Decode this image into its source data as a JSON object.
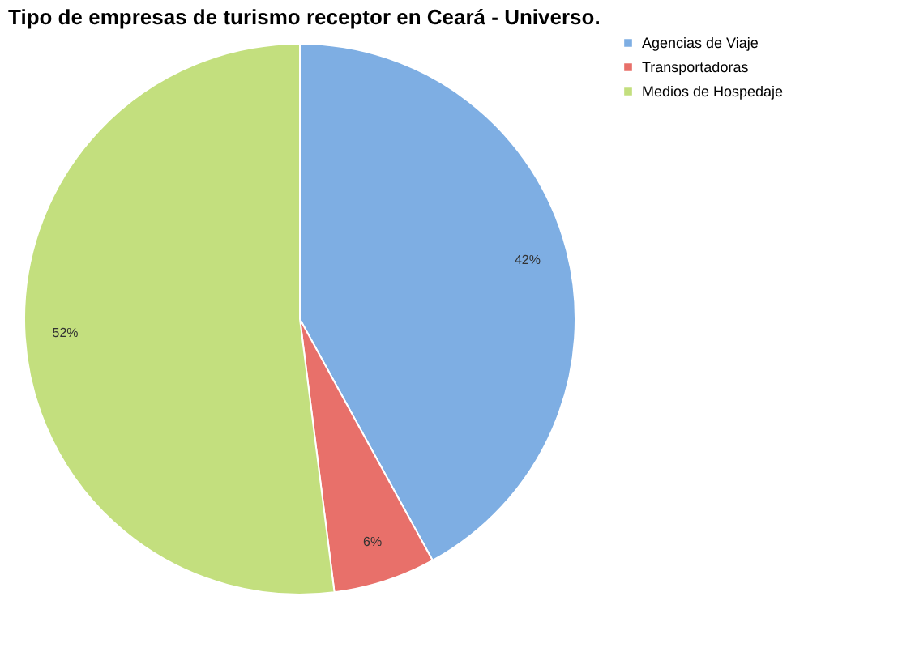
{
  "chart_data": {
    "type": "pie",
    "title": "Tipo de empresas de turismo receptor en Ceará - Universo.",
    "categories": [
      "Agencias de Viaje",
      "Transportadoras",
      "Medios de Hospedaje"
    ],
    "values": [
      42,
      6,
      52
    ],
    "colors": [
      "#7eaee3",
      "#e8706a",
      "#c3df7e"
    ],
    "value_labels": [
      "42%",
      "6%",
      "52%"
    ],
    "legend": "right"
  }
}
